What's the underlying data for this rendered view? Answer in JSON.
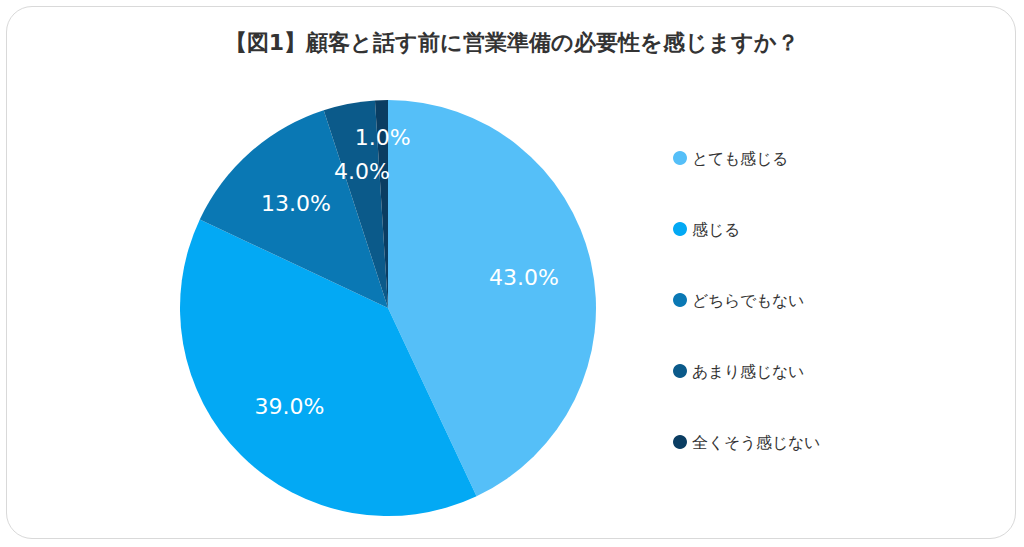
{
  "chart_data": {
    "type": "pie",
    "title": "【図1】顧客と話す前に営業準備の必要性を感じますか？",
    "categories": [
      "とても感じる",
      "感じる",
      "どちらでもない",
      "あまり感じない",
      "全くそう感じない"
    ],
    "values": [
      43,
      39,
      13,
      4,
      1
    ],
    "value_labels": [
      "43.0%",
      "39.0%",
      "13.0%",
      "4.0%",
      "1.0%"
    ],
    "colors": [
      "#55bff8",
      "#03a9f4",
      "#0a78b4",
      "#0b5a8a",
      "#0a3d62"
    ],
    "legend": "right",
    "data_labels": true
  }
}
